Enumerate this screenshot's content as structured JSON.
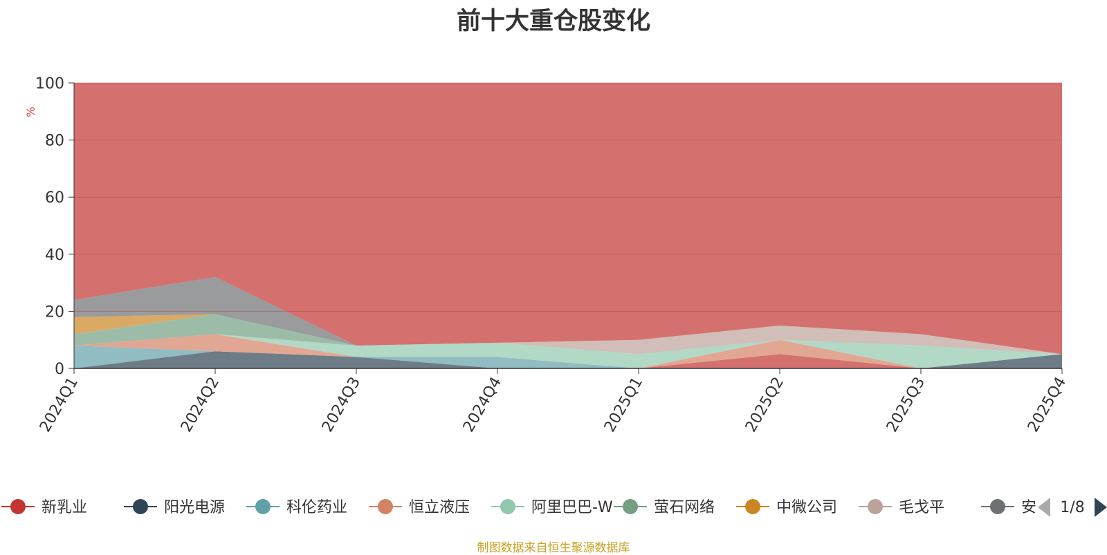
{
  "chart_data": {
    "type": "area",
    "title": "前十大重仓股变化",
    "ylabel": "%",
    "ylim": [
      0,
      100
    ],
    "ytick_labels": [
      "0",
      "20",
      "40",
      "60",
      "80",
      "100"
    ],
    "categories": [
      "2024Q1",
      "2024Q2",
      "2024Q3",
      "2024Q4",
      "2025Q1",
      "2025Q2",
      "2025Q3",
      "2025Q4"
    ],
    "series": [
      {
        "name": "新乳业",
        "color": "#c23531",
        "values": [
          0,
          0,
          0,
          0,
          0,
          5,
          0,
          0
        ]
      },
      {
        "name": "阳光电源",
        "color": "#2f4554",
        "values": [
          0,
          6,
          4,
          0,
          0,
          0,
          0,
          5
        ]
      },
      {
        "name": "科伦药业",
        "color": "#61a0a8",
        "values": [
          8,
          0,
          0,
          4,
          0,
          0,
          0,
          0
        ]
      },
      {
        "name": "恒立液压",
        "color": "#d48265",
        "values": [
          0,
          6,
          0,
          0,
          0,
          5,
          0,
          0
        ]
      },
      {
        "name": "阿里巴巴-W",
        "color": "#91c7ae",
        "values": [
          0,
          0,
          4,
          5,
          5,
          0,
          8,
          0
        ]
      },
      {
        "name": "萤石网络",
        "color": "#749f83",
        "values": [
          4,
          7,
          0,
          0,
          0,
          0,
          0,
          0
        ]
      },
      {
        "name": "中微公司",
        "color": "#ca8622",
        "values": [
          6,
          0,
          0,
          0,
          0,
          0,
          0,
          0
        ]
      },
      {
        "name": "毛戈平",
        "color": "#bda29a",
        "values": [
          0,
          0,
          0,
          0,
          5,
          5,
          4,
          0
        ]
      },
      {
        "name": "安",
        "color": "#6e7074",
        "values": [
          6,
          13,
          0,
          0,
          0,
          0,
          0,
          0
        ]
      }
    ],
    "legend_position": "bottom",
    "legend_page": "1/8",
    "grid": true
  },
  "source_note": "制图数据来自恒生聚源数据库"
}
